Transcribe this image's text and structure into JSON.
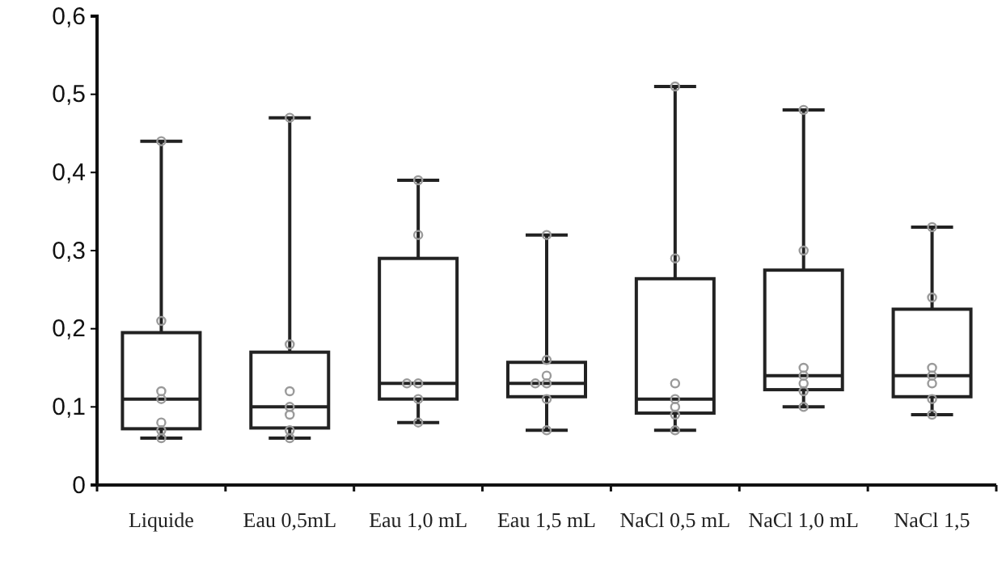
{
  "chart_data": {
    "type": "box",
    "categories": [
      "Liquide",
      "Eau 0,5mL",
      "Eau 1,0 mL",
      "Eau 1,5 mL",
      "NaCl 0,5 mL",
      "NaCl 1,0 mL",
      "NaCl 1,5"
    ],
    "boxes": [
      {
        "low": 0.06,
        "q1": 0.072,
        "median": 0.11,
        "q3": 0.195,
        "high": 0.44
      },
      {
        "low": 0.06,
        "q1": 0.073,
        "median": 0.1,
        "q3": 0.17,
        "high": 0.47
      },
      {
        "low": 0.08,
        "q1": 0.11,
        "median": 0.13,
        "q3": 0.29,
        "high": 0.39
      },
      {
        "low": 0.07,
        "q1": 0.113,
        "median": 0.13,
        "q3": 0.157,
        "high": 0.32
      },
      {
        "low": 0.07,
        "q1": 0.092,
        "median": 0.11,
        "q3": 0.264,
        "high": 0.51
      },
      {
        "low": 0.1,
        "q1": 0.122,
        "median": 0.14,
        "q3": 0.275,
        "high": 0.48
      },
      {
        "low": 0.09,
        "q1": 0.113,
        "median": 0.14,
        "q3": 0.225,
        "high": 0.33
      }
    ],
    "series": [
      {
        "type": "scatter",
        "color": "#9a9a9a",
        "marker": "circle",
        "x": [
          "Liquide",
          "Liquide",
          "Liquide",
          "Liquide",
          "Liquide",
          "Liquide",
          "Liquide",
          "Eau 0,5mL",
          "Eau 0,5mL",
          "Eau 0,5mL",
          "Eau 0,5mL",
          "Eau 0,5mL",
          "Eau 0,5mL",
          "Eau 0,5mL",
          "Eau 1,0 mL",
          "Eau 1,0 mL",
          "Eau 1,0 mL",
          "Eau 1,0 mL",
          "Eau 1,0 mL",
          "Eau 1,0 mL",
          "Eau 1,5 mL",
          "Eau 1,5 mL",
          "Eau 1,5 mL",
          "Eau 1,5 mL",
          "Eau 1,5 mL",
          "Eau 1,5 mL",
          "Eau 1,5 mL",
          "NaCl 0,5 mL",
          "NaCl 0,5 mL",
          "NaCl 0,5 mL",
          "NaCl 0,5 mL",
          "NaCl 0,5 mL",
          "NaCl 0,5 mL",
          "NaCl 0,5 mL",
          "NaCl 1,0 mL",
          "NaCl 1,0 mL",
          "NaCl 1,0 mL",
          "NaCl 1,0 mL",
          "NaCl 1,0 mL",
          "NaCl 1,0 mL",
          "NaCl 1,0 mL",
          "NaCl 1,5",
          "NaCl 1,5",
          "NaCl 1,5",
          "NaCl 1,5",
          "NaCl 1,5",
          "NaCl 1,5",
          "NaCl 1,5"
        ],
        "values": [
          0.44,
          0.21,
          0.12,
          0.11,
          0.08,
          0.07,
          0.06,
          0.47,
          0.18,
          0.12,
          0.1,
          0.09,
          0.07,
          0.06,
          0.39,
          0.32,
          0.13,
          0.13,
          0.11,
          0.08,
          0.32,
          0.16,
          0.14,
          0.13,
          0.13,
          0.11,
          0.07,
          0.51,
          0.29,
          0.13,
          0.11,
          0.1,
          0.09,
          0.07,
          0.48,
          0.3,
          0.15,
          0.14,
          0.13,
          0.12,
          0.1,
          0.33,
          0.24,
          0.15,
          0.14,
          0.13,
          0.11,
          0.09
        ]
      }
    ],
    "ylim": [
      0,
      0.6
    ],
    "yticks": [
      0,
      {
        "value": 0.1,
        "label": "0,1"
      },
      {
        "value": 0.2,
        "label": "0,2"
      },
      {
        "value": 0.3,
        "label": "0,3"
      },
      {
        "value": 0.4,
        "label": "0,4"
      },
      {
        "value": 0.5,
        "label": "0,5"
      },
      {
        "value": 0.6,
        "label": "0,6"
      }
    ],
    "grid": false
  }
}
